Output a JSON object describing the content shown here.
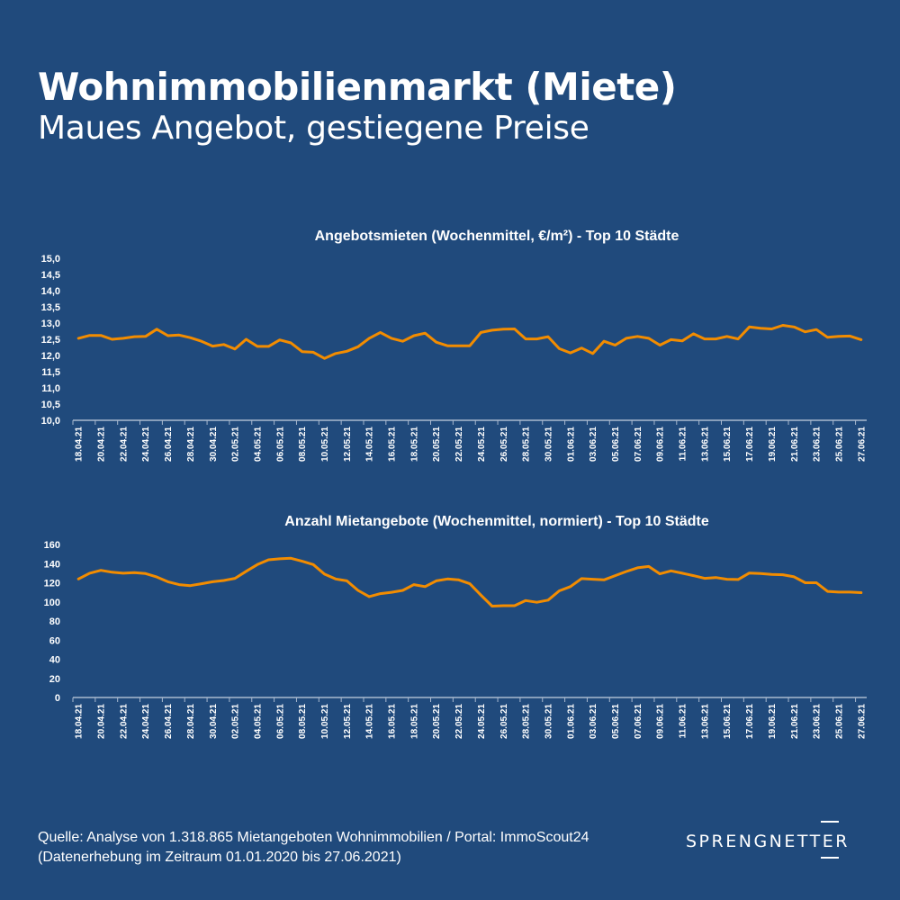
{
  "header": {
    "title": "Wohnimmobilienmarkt (Miete)",
    "subtitle": "Maues Angebot, gestiegene Preise"
  },
  "colors": {
    "background": "#204a7c",
    "line": "#f28c00",
    "axis": "#a9b9cf"
  },
  "chart_data": [
    {
      "type": "line",
      "title": "Angebotsmieten (Wochenmittel, €/m²) - Top 10 Städte",
      "xlabel": "",
      "ylabel": "",
      "ylim": [
        10,
        15
      ],
      "y_ticks": [
        "10,0",
        "10,5",
        "11,0",
        "11,5",
        "12,0",
        "12,5",
        "13,0",
        "13,5",
        "14,0",
        "14,5",
        "15,0"
      ],
      "x_tick_labels": [
        "18.04.21",
        "20.04.21",
        "22.04.21",
        "24.04.21",
        "26.04.21",
        "28.04.21",
        "30.04.21",
        "02.05.21",
        "04.05.21",
        "06.05.21",
        "08.05.21",
        "10.05.21",
        "12.05.21",
        "14.05.21",
        "16.05.21",
        "18.05.21",
        "20.05.21",
        "22.05.21",
        "24.05.21",
        "26.05.21",
        "28.05.21",
        "30.05.21",
        "01.06.21",
        "03.06.21",
        "05.06.21",
        "07.06.21",
        "09.06.21",
        "11.06.21",
        "13.06.21",
        "15.06.21",
        "17.06.21",
        "19.06.21",
        "21.06.21",
        "23.06.21",
        "25.06.21",
        "27.06.21"
      ],
      "grid": false,
      "series": [
        {
          "name": "Angebotsmiete",
          "values": [
            12.53,
            12.62,
            12.62,
            12.5,
            12.53,
            12.58,
            12.59,
            12.81,
            12.61,
            12.63,
            12.55,
            12.44,
            12.29,
            12.34,
            12.2,
            12.5,
            12.28,
            12.28,
            12.48,
            12.39,
            12.12,
            12.1,
            11.91,
            12.06,
            12.13,
            12.27,
            12.53,
            12.71,
            12.53,
            12.44,
            12.61,
            12.69,
            12.41,
            12.3,
            12.3,
            12.3,
            12.71,
            12.78,
            12.81,
            12.82,
            12.51,
            12.51,
            12.58,
            12.21,
            12.08,
            12.23,
            12.06,
            12.44,
            12.32,
            12.53,
            12.59,
            12.53,
            12.32,
            12.49,
            12.45,
            12.67,
            12.51,
            12.51,
            12.59,
            12.51,
            12.88,
            12.84,
            12.82,
            12.93,
            12.88,
            12.73,
            12.8,
            12.56,
            12.59,
            12.6,
            12.49
          ]
        }
      ]
    },
    {
      "type": "line",
      "title": "Anzahl Mietangebote (Wochenmittel, normiert) - Top 10 Städte",
      "xlabel": "",
      "ylabel": "",
      "ylim": [
        0,
        160
      ],
      "y_ticks": [
        "0",
        "20",
        "40",
        "60",
        "80",
        "100",
        "120",
        "140",
        "160"
      ],
      "x_tick_labels": [
        "18.04.21",
        "20.04.21",
        "22.04.21",
        "24.04.21",
        "26.04.21",
        "28.04.21",
        "30.04.21",
        "02.05.21",
        "04.05.21",
        "06.05.21",
        "08.05.21",
        "10.05.21",
        "12.05.21",
        "14.05.21",
        "16.05.21",
        "18.05.21",
        "20.05.21",
        "22.05.21",
        "24.05.21",
        "26.05.21",
        "28.05.21",
        "30.05.21",
        "01.06.21",
        "03.06.21",
        "05.06.21",
        "07.06.21",
        "09.06.21",
        "11.06.21",
        "13.06.21",
        "15.06.21",
        "17.06.21",
        "19.06.21",
        "21.06.21",
        "23.06.21",
        "25.06.21",
        "27.06.21"
      ],
      "grid": false,
      "series": [
        {
          "name": "Anzahl Mietangebote",
          "values": [
            124,
            130,
            133,
            131,
            130,
            130.5,
            129.6,
            126,
            121,
            118,
            117,
            119,
            121,
            122.4,
            124.6,
            132,
            139,
            144,
            145,
            145.6,
            142.5,
            139,
            129,
            124,
            122,
            112,
            105.5,
            108.6,
            110,
            112,
            118,
            116,
            122,
            124,
            123,
            119,
            107,
            95.5,
            96,
            96,
            101.4,
            99.6,
            101.8,
            111.5,
            116,
            124.3,
            123.7,
            123,
            127.4,
            131.8,
            135.6,
            137,
            129.3,
            132.4,
            130,
            127.4,
            124.6,
            125.5,
            123.7,
            123.4,
            130.2,
            129.6,
            128.7,
            128.4,
            126.2,
            120,
            120,
            111,
            110.2,
            110.2,
            109.6
          ]
        }
      ]
    }
  ],
  "footer": {
    "source_line1": "Quelle: Analyse von 1.318.865 Mietangeboten Wohnimmobilien / Portal: ImmoScout24",
    "source_line2": "(Datenerhebung im Zeitraum 01.01.2020 bis  27.06.2021)"
  },
  "logo": {
    "text": "SPRENGNETTER"
  }
}
